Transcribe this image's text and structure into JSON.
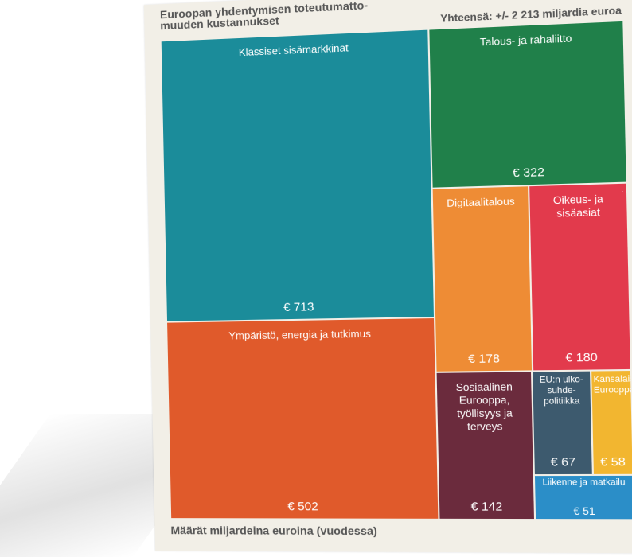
{
  "header": {
    "title": "Euroopan yhdentymisen toteutumatto-muuden kustannukset",
    "total": "Yhteensä: +/- 2 213 miljardia euroa"
  },
  "footer": {
    "note": "Määrät miljardeina euroina (vuodessa)"
  },
  "chart_data": {
    "type": "treemap",
    "title": "Euroopan yhdentymisen toteutumatto-muuden kustannukset",
    "subtitle": "Yhteensä: +/- 2 213 miljardia euroa",
    "unit": "miljardia euroa",
    "categories": [
      {
        "name": "Klassiset sisämarkkinat",
        "value": 713,
        "label": "€ 713",
        "color": "#1b8c9a"
      },
      {
        "name": "Ympäristö, energia ja tutkimus",
        "value": 502,
        "label": "€ 502",
        "color": "#e05a2b"
      },
      {
        "name": "Talous- ja rahaliitto",
        "value": 322,
        "label": "€ 322",
        "color": "#20804a"
      },
      {
        "name": "Digitaalitalous",
        "value": 178,
        "label": "€ 178",
        "color": "#ee8c35"
      },
      {
        "name": "Oikeus- ja sisäasiat",
        "value": 180,
        "label": "€ 180",
        "color": "#e23a4c"
      },
      {
        "name": "Sosiaalinen Eurooppa, työllisyys ja terveys",
        "value": 142,
        "label": "€ 142",
        "color": "#6b2b3d"
      },
      {
        "name": "EU:n ulko- suhde- politiikka",
        "value": 67,
        "label": "€ 67",
        "color": "#3d5a6e"
      },
      {
        "name": "Kansalaisten Eurooppa",
        "value": 58,
        "label": "€ 58",
        "color": "#f2b630"
      },
      {
        "name": "Liikenne ja matkailu",
        "value": 51,
        "label": "€ 51",
        "color": "#2b8ec8"
      }
    ]
  }
}
